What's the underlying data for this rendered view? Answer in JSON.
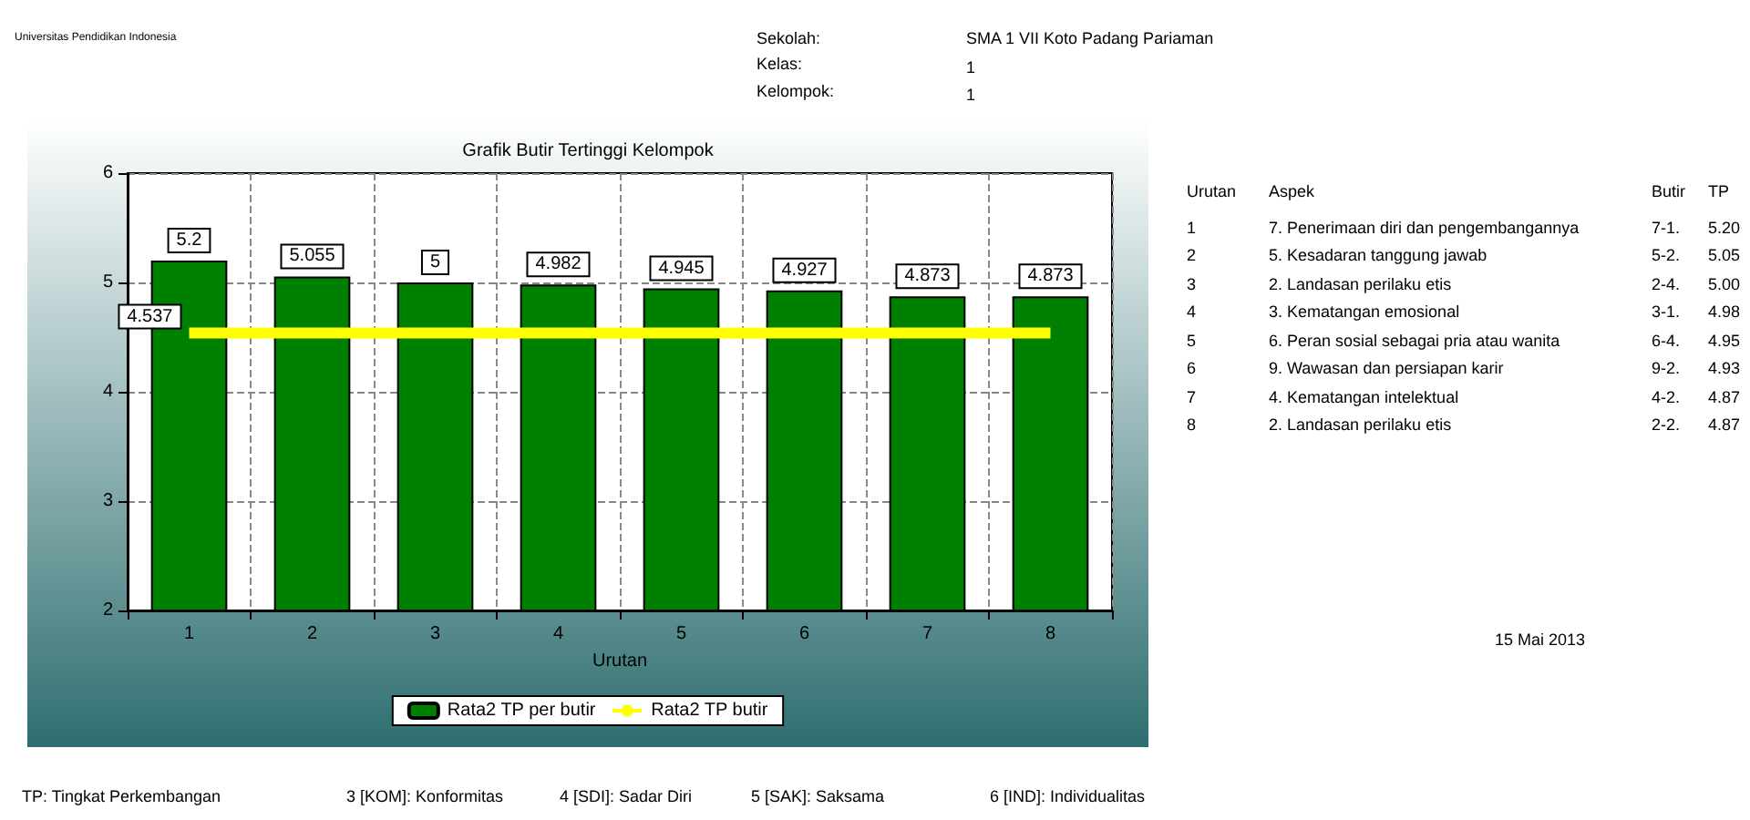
{
  "chart_data": {
    "type": "bar",
    "title": "Grafik Butir Tertinggi Kelompok",
    "xlabel": "Urutan",
    "categories": [
      "1",
      "2",
      "3",
      "4",
      "5",
      "6",
      "7",
      "8"
    ],
    "series": [
      {
        "name": "Rata2 TP per butir",
        "color": "#008000",
        "values": [
          5.2,
          5.055,
          5,
          4.982,
          4.945,
          4.927,
          4.873,
          4.873
        ]
      },
      {
        "name": "Rata2 TP butir",
        "type": "line",
        "color": "#ffff00",
        "values": [
          4.537,
          4.537,
          4.537,
          4.537,
          4.537,
          4.537,
          4.537,
          4.537
        ],
        "value_labels": [
          "4.537",
          null,
          null,
          null,
          null,
          null,
          null,
          null
        ]
      }
    ],
    "ylim": [
      2,
      6
    ],
    "yticks": [
      2,
      3,
      4,
      5,
      6
    ],
    "grid": true,
    "legend": "bottom",
    "data_labels": true,
    "marker": "none",
    "annotations": [
      "Universitas Pendidikan Indonesia",
      "Sekolah:",
      "SMA 1 VII Koto Padang Pariaman",
      "Kelas:",
      "1",
      "Kelompok:",
      "1",
      "Urutan",
      "Aspek",
      "Butir",
      "TP",
      "1",
      "7. Penerimaan diri dan pengembangannya",
      "7-1.",
      "5.20",
      "2",
      "5. Kesadaran tanggung jawab",
      "5-2.",
      "5.05",
      "3",
      "2. Landasan perilaku etis",
      "2-4.",
      "5.00",
      "4",
      "3. Kematangan emosional",
      "3-1.",
      "4.98",
      "5",
      "6. Peran sosial sebagai pria atau wanita",
      "6-4.",
      "4.95",
      "6",
      "9. Wawasan dan persiapan karir",
      "9-2.",
      "4.93",
      "7",
      "4. Kematangan intelektual",
      "4-2.",
      "4.87",
      "8",
      "2. Landasan perilaku etis",
      "2-2.",
      "4.87",
      "15 Mai 2013",
      "TP: Tingkat Perkembangan",
      "3 [KOM]: Konformitas",
      "4 [SDI]: Sadar Diri",
      "5 [SAK]: Saksama",
      "6 [IND]: Individualitas"
    ]
  }
}
